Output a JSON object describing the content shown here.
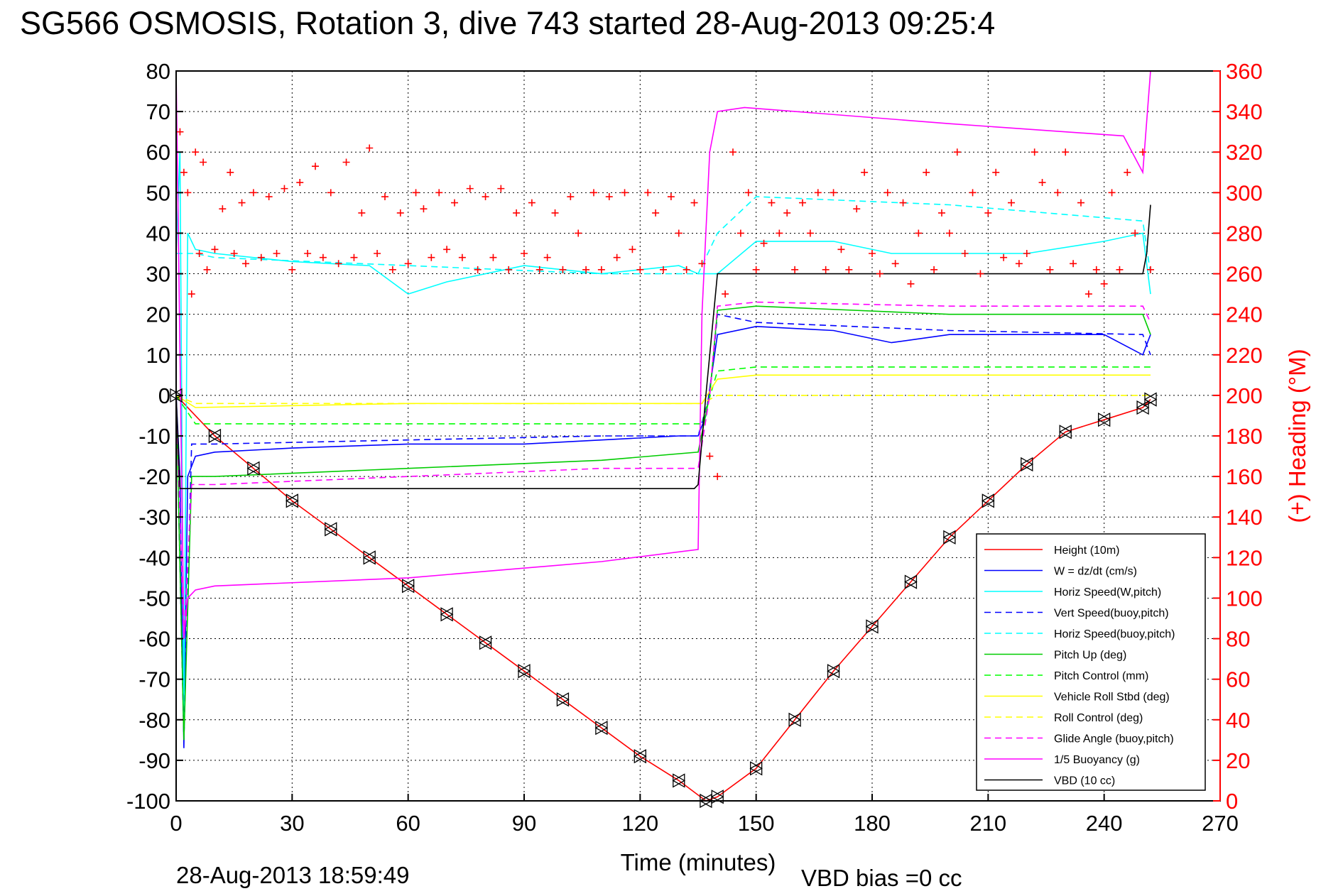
{
  "chart_data": {
    "type": "line",
    "title": "SG566 OSMOSIS, Rotation 3, dive 743 started 28-Aug-2013 09:25:4",
    "xlabel": "Time (minutes)",
    "ylabel_right": "(+) Heading (°M)",
    "footer_left": "28-Aug-2013 18:59:49",
    "footer_right": "VBD bias =0 cc",
    "xlim": [
      0,
      270
    ],
    "ylim": [
      -100,
      80
    ],
    "ylim_right": [
      0,
      360
    ],
    "x_ticks": [
      "0",
      "30",
      "60",
      "90",
      "120",
      "150",
      "180",
      "210",
      "240",
      "270"
    ],
    "y_ticks": [
      "80",
      "70",
      "60",
      "50",
      "40",
      "30",
      "20",
      "10",
      "0",
      "-10",
      "-20",
      "-30",
      "-40",
      "-50",
      "-60",
      "-70",
      "-80",
      "-90",
      "-100"
    ],
    "y_ticks_right": [
      "360",
      "340",
      "320",
      "300",
      "280",
      "260",
      "240",
      "220",
      "200",
      "180",
      "160",
      "140",
      "120",
      "100",
      "80",
      "60",
      "40",
      "20",
      "0"
    ],
    "grid": true,
    "legend_position": "bottom-right",
    "series": [
      {
        "name": "Height (10m)",
        "color": "#ff0000",
        "style": "solid",
        "x": [
          0,
          10,
          20,
          30,
          40,
          50,
          60,
          70,
          80,
          90,
          100,
          110,
          120,
          130,
          137,
          140,
          150,
          160,
          170,
          180,
          190,
          200,
          210,
          220,
          230,
          240,
          250,
          252
        ],
        "y": [
          0,
          -10,
          -18,
          -26,
          -33,
          -40,
          -47,
          -54,
          -61,
          -68,
          -75,
          -82,
          -89,
          -95,
          -100,
          -99,
          -92,
          -80,
          -68,
          -57,
          -46,
          -35,
          -26,
          -17,
          -9,
          -6,
          -3,
          -1
        ]
      },
      {
        "name": "W = dz/dt (cm/s)",
        "color": "#0000ff",
        "style": "solid",
        "x": [
          0,
          1,
          2,
          3,
          5,
          10,
          30,
          60,
          90,
          110,
          130,
          135,
          137,
          140,
          150,
          170,
          185,
          200,
          220,
          240,
          250,
          252
        ],
        "y": [
          0,
          -20,
          -87,
          -20,
          -15,
          -14,
          -13,
          -12,
          -12,
          -11,
          -10,
          -10,
          -5,
          15,
          17,
          16,
          13,
          15,
          15,
          15,
          10,
          15
        ]
      },
      {
        "name": "Horiz Speed(W,pitch)",
        "color": "#00ffff",
        "style": "solid",
        "x": [
          0,
          1,
          2,
          3,
          5,
          10,
          30,
          50,
          60,
          70,
          90,
          110,
          130,
          135,
          137,
          140,
          150,
          170,
          185,
          200,
          220,
          240,
          250,
          252
        ],
        "y": [
          35,
          60,
          -80,
          40,
          36,
          35,
          33,
          32,
          25,
          28,
          32,
          30,
          32,
          30,
          30,
          30,
          38,
          38,
          35,
          35,
          35,
          38,
          40,
          25
        ]
      },
      {
        "name": "Vert Speed(buoy,pitch)",
        "color": "#0000ff",
        "style": "dashed",
        "x": [
          0,
          2,
          4,
          10,
          60,
          110,
          135,
          138,
          140,
          150,
          200,
          250,
          252
        ],
        "y": [
          0,
          -85,
          -12,
          -12,
          -11,
          -10,
          -10,
          0,
          20,
          18,
          16,
          15,
          10
        ]
      },
      {
        "name": "Horiz Speed(buoy,pitch)",
        "color": "#00ffff",
        "style": "dashed",
        "x": [
          0,
          5,
          10,
          60,
          110,
          135,
          140,
          150,
          200,
          250,
          252
        ],
        "y": [
          35,
          35,
          34,
          32,
          30,
          30,
          40,
          49,
          47,
          43,
          30
        ]
      },
      {
        "name": "Pitch Up (deg)",
        "color": "#00cc00",
        "style": "solid",
        "x": [
          0,
          2,
          4,
          10,
          60,
          110,
          135,
          138,
          140,
          150,
          200,
          250,
          252
        ],
        "y": [
          0,
          -85,
          -20,
          -20,
          -18,
          -16,
          -14,
          0,
          21,
          22,
          20,
          20,
          15
        ]
      },
      {
        "name": "Pitch Control (mm)",
        "color": "#00ff00",
        "style": "dashed",
        "x": [
          0,
          5,
          60,
          130,
          136,
          140,
          150,
          250,
          252
        ],
        "y": [
          0,
          -7,
          -7,
          -7,
          -7,
          6,
          7,
          7,
          7
        ]
      },
      {
        "name": "Vehicle Roll Stbd (deg)",
        "color": "#ffff00",
        "style": "solid",
        "x": [
          0,
          5,
          60,
          130,
          136,
          140,
          150,
          250,
          252
        ],
        "y": [
          0,
          -3,
          -2,
          -2,
          -2,
          4,
          5,
          5,
          5
        ]
      },
      {
        "name": "Roll Control (deg)",
        "color": "#ffff00",
        "style": "dashed",
        "x": [
          0,
          5,
          60,
          130,
          136,
          140,
          150,
          250,
          252
        ],
        "y": [
          0,
          -2,
          -2,
          -2,
          -2,
          0,
          0,
          0,
          0
        ]
      },
      {
        "name": "Glide Angle (buoy,pitch)",
        "color": "#ff00ff",
        "style": "dashed",
        "x": [
          0,
          2,
          4,
          10,
          60,
          110,
          135,
          138,
          140,
          150,
          200,
          250,
          252
        ],
        "y": [
          0,
          -60,
          -22,
          -22,
          -20,
          -18,
          -18,
          0,
          22,
          23,
          22,
          22,
          18
        ]
      },
      {
        "name": "1/5 Buoyancy (g)",
        "color": "#ff00ff",
        "style": "solid",
        "x": [
          0,
          2,
          3,
          5,
          10,
          60,
          110,
          135,
          136,
          138,
          140,
          147,
          200,
          245,
          250,
          252
        ],
        "y": [
          80,
          -60,
          -50,
          -48,
          -47,
          -45,
          -41,
          -38,
          20,
          60,
          70,
          71,
          67,
          64,
          55,
          80
        ]
      },
      {
        "name": "VBD (10 cc)",
        "color": "#000000",
        "style": "solid",
        "x": [
          0,
          1,
          5,
          134,
          135,
          137,
          140,
          250,
          251,
          252
        ],
        "y": [
          0,
          -23,
          -23,
          -23,
          -22,
          0,
          30,
          30,
          35,
          47
        ]
      }
    ],
    "heading_series": {
      "name": "(+) Heading",
      "color": "#ff0000",
      "marker": "+",
      "axis": "right",
      "x": [
        1,
        2,
        3,
        4,
        5,
        6,
        7,
        8,
        10,
        12,
        14,
        15,
        17,
        18,
        20,
        22,
        24,
        26,
        28,
        30,
        32,
        34,
        36,
        38,
        40,
        42,
        44,
        46,
        48,
        50,
        52,
        54,
        56,
        58,
        60,
        62,
        64,
        66,
        68,
        70,
        72,
        74,
        76,
        78,
        80,
        82,
        84,
        86,
        88,
        90,
        92,
        94,
        96,
        98,
        100,
        102,
        104,
        106,
        108,
        110,
        112,
        114,
        116,
        118,
        120,
        122,
        124,
        126,
        128,
        130,
        132,
        134,
        136,
        138,
        140,
        142,
        144,
        146,
        148,
        150,
        152,
        154,
        156,
        158,
        160,
        162,
        164,
        166,
        168,
        170,
        172,
        174,
        176,
        178,
        180,
        182,
        184,
        186,
        188,
        190,
        192,
        194,
        196,
        198,
        200,
        202,
        204,
        206,
        208,
        210,
        212,
        214,
        216,
        218,
        220,
        222,
        224,
        226,
        228,
        230,
        232,
        234,
        236,
        238,
        240,
        242,
        244,
        246,
        248,
        250,
        252
      ],
      "y": [
        330,
        310,
        300,
        250,
        320,
        270,
        315,
        262,
        272,
        292,
        310,
        270,
        295,
        265,
        300,
        268,
        298,
        270,
        302,
        262,
        305,
        270,
        313,
        268,
        300,
        265,
        315,
        268,
        290,
        322,
        270,
        298,
        262,
        290,
        265,
        300,
        292,
        268,
        300,
        272,
        295,
        268,
        302,
        262,
        298,
        268,
        302,
        262,
        290,
        270,
        295,
        262,
        268,
        290,
        262,
        298,
        280,
        262,
        300,
        262,
        298,
        268,
        300,
        272,
        262,
        300,
        290,
        262,
        298,
        280,
        262,
        295,
        265,
        170,
        160,
        250,
        320,
        280,
        300,
        262,
        275,
        295,
        280,
        290,
        262,
        295,
        280,
        300,
        262,
        300,
        272,
        262,
        292,
        310,
        270,
        260,
        300,
        265,
        295,
        255,
        280,
        310,
        262,
        290,
        280,
        320,
        270,
        300,
        260,
        290,
        310,
        268,
        295,
        265,
        270,
        320,
        305,
        262,
        300,
        320,
        265,
        295,
        250,
        262,
        255,
        300,
        262,
        310,
        280,
        320,
        262
      ]
    },
    "legend": [
      "Height (10m)",
      "W = dz/dt (cm/s)",
      "Horiz Speed(W,pitch)",
      "Vert Speed(buoy,pitch)",
      "Horiz Speed(buoy,pitch)",
      "Pitch Up (deg)",
      "Pitch Control (mm)",
      "Vehicle Roll Stbd (deg)",
      "Roll Control (deg)",
      "Glide Angle (buoy,pitch)",
      "1/5 Buoyancy (g)",
      "VBD (10 cc)"
    ]
  }
}
